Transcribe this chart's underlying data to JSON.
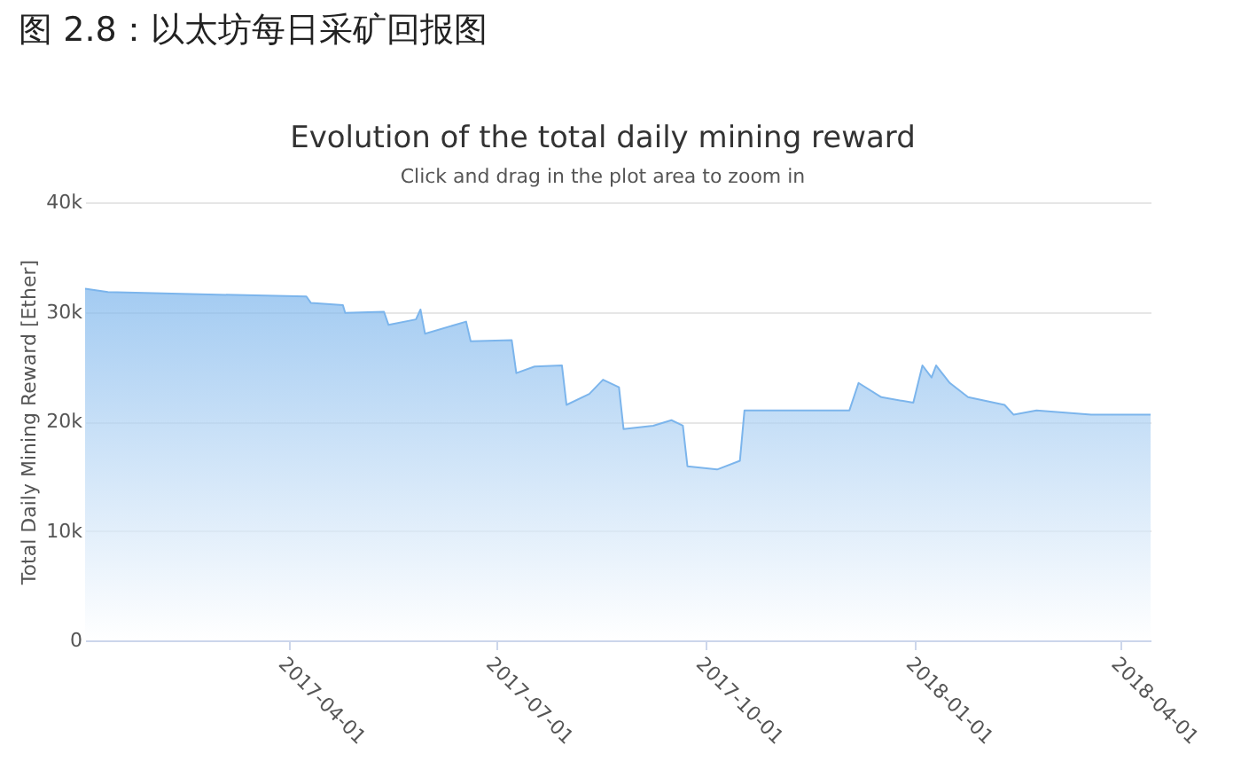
{
  "chart_data": {
    "type": "area",
    "title": "图 2.8：以太坊每日采矿回报图",
    "subtitle": "Evolution of the total daily mining reward",
    "annotations": [
      "Click and drag in the plot area to zoom in"
    ],
    "ylabel": "Total Daily Mining Reward [Ether]",
    "x": [
      "2017-01-02",
      "2017-01-12",
      "2017-02-21",
      "2017-04-09",
      "2017-04-11",
      "2017-04-25",
      "2017-04-26",
      "2017-05-13",
      "2017-05-15",
      "2017-05-27",
      "2017-05-29",
      "2017-05-31",
      "2017-06-18",
      "2017-06-20",
      "2017-07-08",
      "2017-07-10",
      "2017-07-18",
      "2017-07-30",
      "2017-08-01",
      "2017-08-11",
      "2017-08-17",
      "2017-08-24",
      "2017-08-26",
      "2017-09-08",
      "2017-09-16",
      "2017-09-21",
      "2017-09-23",
      "2017-10-06",
      "2017-10-16",
      "2017-10-18",
      "2017-12-03",
      "2017-12-07",
      "2017-12-17",
      "2017-12-31",
      "2018-01-04",
      "2018-01-08",
      "2018-01-10",
      "2018-01-16",
      "2018-01-24",
      "2018-02-09",
      "2018-02-13",
      "2018-02-23",
      "2018-03-19",
      "2018-04-14"
    ],
    "series": [
      {
        "color": "#7cb5ec",
        "values": [
          32100,
          31800,
          31600,
          31400,
          30800,
          30600,
          29900,
          30000,
          28800,
          29300,
          30200,
          28000,
          29100,
          27300,
          27400,
          24400,
          25000,
          25100,
          21500,
          22500,
          23800,
          23100,
          19300,
          19600,
          20100,
          19600,
          15900,
          15600,
          16400,
          21000,
          21000,
          23500,
          22200,
          21700,
          25100,
          24000,
          25100,
          23500,
          22200,
          21500,
          20600,
          21000,
          20600,
          20600
        ]
      }
    ],
    "xlim": [
      "2017-01-02",
      "2018-04-14"
    ],
    "xticks": [
      "2017-04-01",
      "2017-07-01",
      "2017-10-01",
      "2018-01-01",
      "2018-04-01"
    ],
    "ylim": [
      0,
      40000
    ],
    "yticks": [
      0,
      {
        "value": 10000,
        "label": "10k"
      },
      {
        "value": 20000,
        "label": "20k"
      },
      {
        "value": 30000,
        "label": "30k"
      },
      {
        "value": 40000,
        "label": "40k"
      }
    ],
    "grid": "y"
  }
}
